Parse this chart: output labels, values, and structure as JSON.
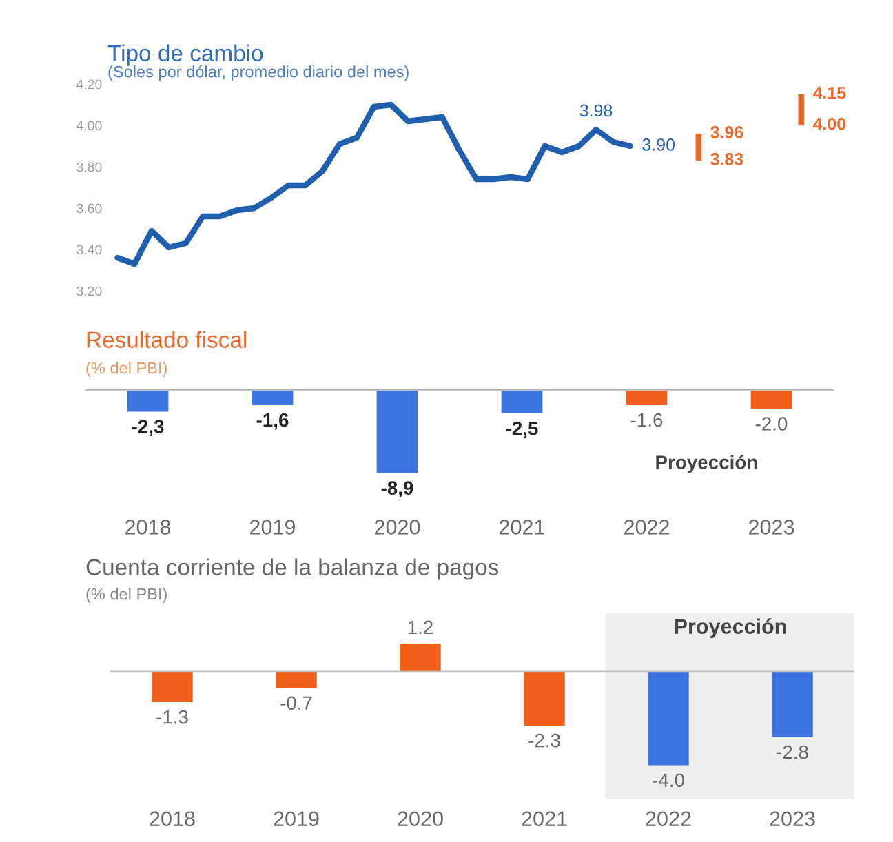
{
  "chart_data": [
    {
      "type": "line",
      "title": "Tipo de cambio",
      "subtitle": "(Soles por dólar, promedio diario del mes)",
      "categories": [
        null,
        null,
        null,
        null,
        null,
        null,
        null,
        null,
        null,
        null,
        null,
        null,
        null,
        null,
        null,
        null,
        null,
        null,
        null,
        null,
        null,
        null,
        null,
        null,
        null,
        null,
        null,
        null,
        null,
        null,
        null,
        null,
        null,
        null,
        null,
        null,
        null,
        null,
        null,
        null,
        null,
        null
      ],
      "series": [
        {
          "type": "line",
          "color": "#1f5fae",
          "values": [
            3.36,
            3.33,
            3.49,
            3.41,
            3.43,
            3.56,
            3.56,
            3.59,
            3.6,
            3.65,
            3.71,
            3.71,
            3.78,
            3.91,
            3.94,
            4.09,
            4.1,
            4.02,
            4.03,
            4.04,
            3.88,
            3.74,
            3.74,
            3.75,
            3.74,
            3.9,
            3.87,
            3.9,
            3.98,
            3.92,
            3.9,
            null,
            null,
            null,
            null,
            null,
            null,
            null,
            null,
            null,
            null,
            null
          ]
        },
        {
          "type": "bar",
          "color": "#e8672a",
          "base": [
            null,
            null,
            null,
            null,
            null,
            null,
            null,
            null,
            null,
            null,
            null,
            null,
            null,
            null,
            null,
            null,
            null,
            null,
            null,
            null,
            null,
            null,
            null,
            null,
            null,
            null,
            null,
            null,
            null,
            null,
            null,
            null,
            null,
            null,
            3.83,
            null,
            null,
            null,
            null,
            null,
            4.0,
            null
          ],
          "values": [
            null,
            null,
            null,
            null,
            null,
            null,
            null,
            null,
            null,
            null,
            null,
            null,
            null,
            null,
            null,
            null,
            null,
            null,
            null,
            null,
            null,
            null,
            null,
            null,
            null,
            null,
            null,
            null,
            null,
            null,
            null,
            null,
            null,
            null,
            0.13,
            null,
            null,
            null,
            null,
            null,
            0.15,
            null
          ]
        }
      ],
      "ylim": [
        3.2,
        4.2
      ],
      "yticks": [
        {
          "value": 3.2,
          "label": "3.20"
        },
        {
          "value": 3.4,
          "label": "3.40"
        },
        {
          "value": 3.6,
          "label": "3.60"
        },
        {
          "value": 3.8,
          "label": "3.80"
        },
        {
          "value": 4.0,
          "label": "4.00"
        },
        {
          "value": 4.2,
          "label": "4.20"
        }
      ],
      "tick_labels": "y",
      "grid": false,
      "legend": false,
      "annotations": [
        "3.98",
        "3.90",
        "3.96",
        "3.83",
        "4.15",
        "4.00"
      ]
    },
    {
      "type": "bar",
      "title": "Resultado fiscal",
      "subtitle": "(% del PBI)",
      "categories": [
        "2018",
        "2019",
        "2020",
        "2021",
        "2022",
        "2023"
      ],
      "values": [
        -2.3,
        -1.6,
        -8.9,
        -2.5,
        -1.6,
        -2.0
      ],
      "colors": [
        "#3b73e0",
        "#3b73e0",
        "#3b73e0",
        "#3b73e0",
        "#f0601a",
        "#f0601a"
      ],
      "value_labels": [
        "-2,3",
        "-1,6",
        "-8,9",
        "-2,5",
        "-1.6",
        "-2.0"
      ],
      "tick_labels": "x",
      "grid": false,
      "legend": false,
      "annotations": [
        "Proyección"
      ]
    },
    {
      "type": "bar",
      "title": "Cuenta corriente de la balanza de pagos",
      "subtitle": "(% del PBI)",
      "categories": [
        "2018",
        "2019",
        "2020",
        "2021",
        "2022",
        "2023"
      ],
      "values": [
        -1.3,
        -0.7,
        1.2,
        -2.3,
        -4.0,
        -2.8
      ],
      "colors": [
        "#f0601a",
        "#f0601a",
        "#f0601a",
        "#f0601a",
        "#3b73e0",
        "#3b73e0"
      ],
      "value_labels": [
        "-1.3",
        "-0.7",
        "1.2",
        "-2.3",
        "-4.0",
        "-2.8"
      ],
      "tick_labels": "x",
      "grid": false,
      "legend": false,
      "bands": [
        {
          "axis": "x",
          "from": "2022",
          "to": "2023",
          "label": "Proyección",
          "color": "#efefef"
        }
      ]
    }
  ]
}
